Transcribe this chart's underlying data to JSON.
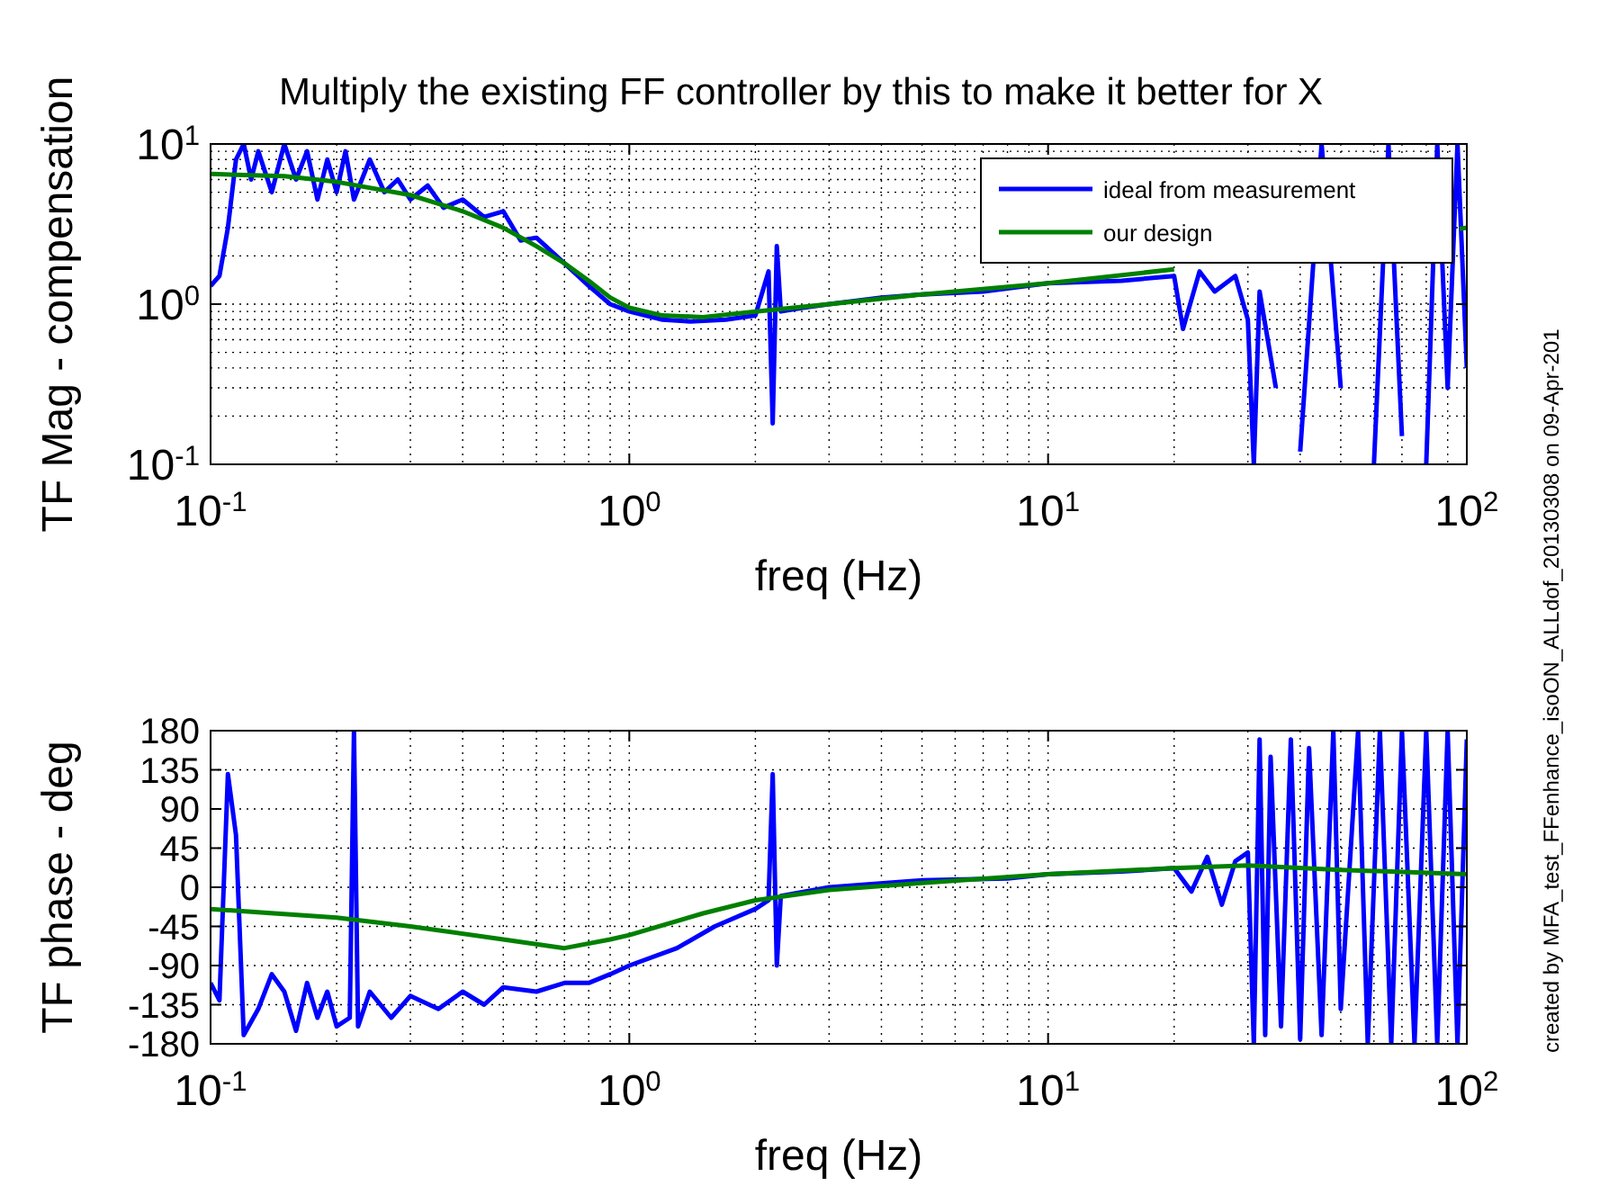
{
  "chart_data": [
    {
      "type": "line",
      "title": "Multiply the existing FF controller by this to make it better for X",
      "xlabel": "freq (Hz)",
      "ylabel": "TF Mag - compensation",
      "log": "xy",
      "grid": true,
      "legend": "top right",
      "xlim": [
        0.1,
        100
      ],
      "ylim": [
        0.1,
        10
      ],
      "xticks": [
        {
          "value": 0.1,
          "label": "10$^{-1}$"
        },
        {
          "value": 1,
          "label": "10$^{0}$"
        },
        {
          "value": 10,
          "label": "10$^{1}$"
        },
        {
          "value": 100,
          "label": "10$^{2}$"
        }
      ],
      "yticks": [
        {
          "value": 0.1,
          "label": "10$^{-1}$"
        },
        {
          "value": 1,
          "label": "10$^{0}$"
        },
        {
          "value": 10,
          "label": "10$^{1}$"
        }
      ],
      "annotations": [
        "created by MFA_test_FFenhance_isoON_ALLdof_20130308 on 09-Apr-201"
      ],
      "series": [
        {
          "name": "ideal from measurement",
          "color": "#0000ff",
          "x": [
            0.1,
            0.105,
            0.11,
            0.115,
            0.12,
            0.125,
            0.13,
            0.14,
            0.15,
            0.16,
            0.17,
            0.18,
            0.19,
            0.2,
            0.21,
            0.22,
            0.24,
            0.26,
            0.28,
            0.3,
            0.33,
            0.36,
            0.4,
            0.45,
            0.5,
            0.55,
            0.6,
            0.7,
            0.8,
            0.9,
            1.0,
            1.2,
            1.4,
            1.7,
            2.0,
            2.15,
            2.2,
            2.25,
            2.3,
            2.6,
            3,
            4,
            5,
            7,
            10,
            15,
            20,
            21,
            23,
            25,
            28,
            30,
            31,
            32,
            35,
            38,
            40,
            45,
            50,
            55,
            60,
            65,
            70,
            75,
            80,
            85,
            90,
            95,
            100
          ],
          "values": [
            1.3,
            1.5,
            3,
            8,
            10,
            6,
            9,
            5,
            10,
            6,
            9,
            4.5,
            8,
            5,
            9,
            4.5,
            8,
            5,
            6,
            4.5,
            5.5,
            4,
            4.5,
            3.5,
            3.8,
            2.5,
            2.6,
            1.8,
            1.3,
            1.0,
            0.9,
            0.8,
            0.78,
            0.8,
            0.85,
            1.6,
            0.18,
            2.3,
            0.9,
            0.95,
            1.0,
            1.1,
            1.15,
            1.2,
            1.35,
            1.4,
            1.5,
            0.7,
            1.6,
            1.2,
            1.5,
            0.8,
            0.1,
            1.2,
            0.3,
            null,
            0.12,
            10,
            0.3,
            null,
            0.1,
            10,
            0.15,
            null,
            0.1,
            10,
            0.3,
            10,
            0.4
          ]
        },
        {
          "name": "our design",
          "color": "#008000",
          "x": [
            0.1,
            0.15,
            0.2,
            0.3,
            0.4,
            0.5,
            0.6,
            0.7,
            0.8,
            0.9,
            1,
            1.2,
            1.5,
            2,
            3,
            5,
            10,
            20,
            30,
            50,
            96,
            100
          ],
          "values": [
            6.5,
            6.3,
            5.8,
            4.8,
            3.8,
            3,
            2.3,
            1.8,
            1.4,
            1.1,
            0.95,
            0.85,
            0.83,
            0.9,
            1.0,
            1.15,
            1.35,
            1.65,
            null,
            null,
            2.95,
            3
          ]
        }
      ]
    },
    {
      "type": "line",
      "xlabel": "freq (Hz)",
      "ylabel": "TF phase - deg",
      "log": "x",
      "grid": true,
      "xlim": [
        0.1,
        100
      ],
      "ylim": [
        -180,
        180
      ],
      "xticks": [
        {
          "value": 0.1,
          "label": "10$^{-1}$"
        },
        {
          "value": 1,
          "label": "10$^{0}$"
        },
        {
          "value": 10,
          "label": "10$^{1}$"
        },
        {
          "value": 100,
          "label": "10$^{2}$"
        }
      ],
      "yticks": [
        180,
        135,
        90,
        45,
        0,
        -45,
        -90,
        -135,
        -180
      ],
      "series": [
        {
          "color": "#0000ff",
          "x": [
            0.1,
            0.105,
            0.11,
            0.115,
            0.12,
            0.13,
            0.14,
            0.15,
            0.16,
            0.17,
            0.18,
            0.19,
            0.2,
            0.215,
            0.22,
            0.225,
            0.24,
            0.27,
            0.3,
            0.35,
            0.4,
            0.45,
            0.5,
            0.6,
            0.7,
            0.8,
            0.9,
            1,
            1.3,
            1.6,
            2,
            2.15,
            2.2,
            2.25,
            2.3,
            3,
            5,
            8,
            10,
            15,
            20,
            22,
            24,
            26,
            28,
            30,
            31,
            32,
            33,
            34,
            36,
            38,
            40,
            42,
            45,
            48,
            50,
            55,
            58,
            62,
            66,
            70,
            75,
            80,
            85,
            90,
            95,
            100
          ],
          "values": [
            -110,
            -130,
            130,
            60,
            -170,
            -140,
            -100,
            -120,
            -165,
            -110,
            -150,
            -120,
            -160,
            -150,
            180,
            -160,
            -120,
            -150,
            -125,
            -140,
            -120,
            -135,
            -115,
            -120,
            -110,
            -110,
            -100,
            -90,
            -70,
            -45,
            -25,
            -15,
            130,
            -90,
            -10,
            0,
            8,
            10,
            15,
            18,
            22,
            -5,
            35,
            -20,
            30,
            40,
            -180,
            170,
            -170,
            150,
            -160,
            170,
            -175,
            160,
            -170,
            180,
            -140,
            180,
            -180,
            180,
            -180,
            180,
            -180,
            180,
            -180,
            180,
            -180,
            170
          ]
        },
        {
          "color": "#008000",
          "x": [
            0.1,
            0.2,
            0.3,
            0.5,
            0.7,
            0.9,
            1,
            1.5,
            2,
            3,
            5,
            10,
            20,
            30,
            50,
            100
          ],
          "values": [
            -25,
            -35,
            -45,
            -60,
            -70,
            -60,
            -55,
            -30,
            -15,
            -3,
            5,
            15,
            22,
            25,
            20,
            15
          ]
        }
      ]
    }
  ]
}
